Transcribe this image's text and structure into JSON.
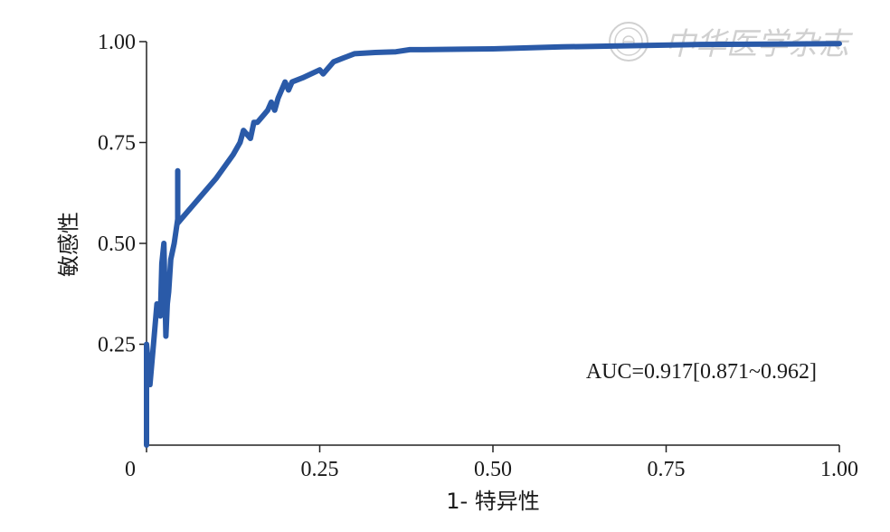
{
  "chart_data": {
    "type": "line",
    "xlabel": "1- 特异性",
    "ylabel": "敏感性",
    "xlim": [
      0,
      1
    ],
    "ylim": [
      0,
      1
    ],
    "x_ticks": [
      0,
      0.25,
      0.5,
      0.75,
      1.0
    ],
    "x_tick_labels": [
      "0",
      "0.25",
      "0.50",
      "0.75",
      "1.00"
    ],
    "y_ticks": [
      0.25,
      0.5,
      0.75,
      1.0
    ],
    "y_tick_labels": [
      "0.25",
      "0.50",
      "0.75",
      "1.00"
    ],
    "grid": false,
    "annotation": "AUC=0.917[0.871~0.962]",
    "colors": {
      "curve": "#2a5aa8",
      "axis": "#222222",
      "watermark": "#d0d0d0"
    },
    "series": [
      {
        "x": [
          0,
          0,
          0.005,
          0.01,
          0.015,
          0.02,
          0.022,
          0.025,
          0.028,
          0.03,
          0.032,
          0.035,
          0.04,
          0.045,
          0.045,
          0.045,
          0.05,
          0.075,
          0.1,
          0.125,
          0.135,
          0.14,
          0.15,
          0.155,
          0.16,
          0.17,
          0.175,
          0.18,
          0.185,
          0.19,
          0.2,
          0.205,
          0.21,
          0.225,
          0.25,
          0.255,
          0.27,
          0.285,
          0.3,
          0.33,
          0.36,
          0.38,
          0.4,
          0.5,
          0.6,
          0.7,
          0.8,
          0.9,
          1.0
        ],
        "y": [
          0,
          0.25,
          0.15,
          0.25,
          0.35,
          0.32,
          0.45,
          0.5,
          0.27,
          0.35,
          0.38,
          0.46,
          0.5,
          0.56,
          0.68,
          0.55,
          0.56,
          0.61,
          0.66,
          0.72,
          0.75,
          0.78,
          0.76,
          0.8,
          0.8,
          0.82,
          0.83,
          0.85,
          0.83,
          0.86,
          0.9,
          0.88,
          0.9,
          0.91,
          0.93,
          0.92,
          0.95,
          0.96,
          0.97,
          0.973,
          0.975,
          0.98,
          0.98,
          0.982,
          0.987,
          0.99,
          0.993,
          0.994,
          0.995
        ]
      }
    ]
  },
  "watermark": {
    "text": "中华医学杂志",
    "seal_icon": "seal-icon"
  }
}
